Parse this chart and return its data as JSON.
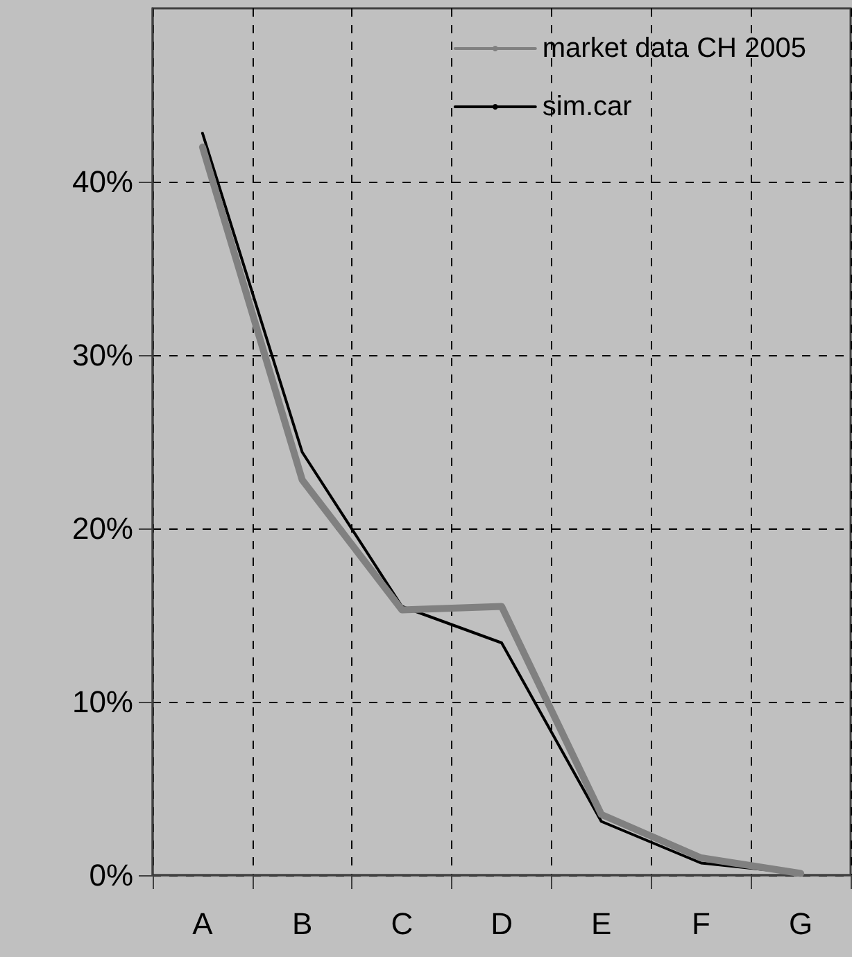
{
  "chart_data": {
    "type": "line",
    "categories": [
      "A",
      "B",
      "C",
      "D",
      "E",
      "F",
      "G"
    ],
    "series": [
      {
        "name": "market data CH 2005",
        "color": "#808080",
        "values": [
          42.0,
          22.8,
          15.3,
          15.5,
          3.5,
          1.0,
          0.1
        ]
      },
      {
        "name": "sim.car",
        "color": "#000000",
        "values": [
          42.8,
          24.4,
          15.5,
          13.4,
          3.1,
          0.7,
          0.1
        ]
      }
    ],
    "ylim": [
      0,
      50
    ],
    "yticks": [
      {
        "value": 0,
        "label": "0%"
      },
      {
        "value": 10,
        "label": "10%"
      },
      {
        "value": 20,
        "label": "20%"
      },
      {
        "value": 30,
        "label": "30%"
      },
      {
        "value": 40,
        "label": "40%"
      }
    ],
    "grid": true,
    "legend": "top right",
    "marker": "none",
    "line_style": "solid"
  }
}
